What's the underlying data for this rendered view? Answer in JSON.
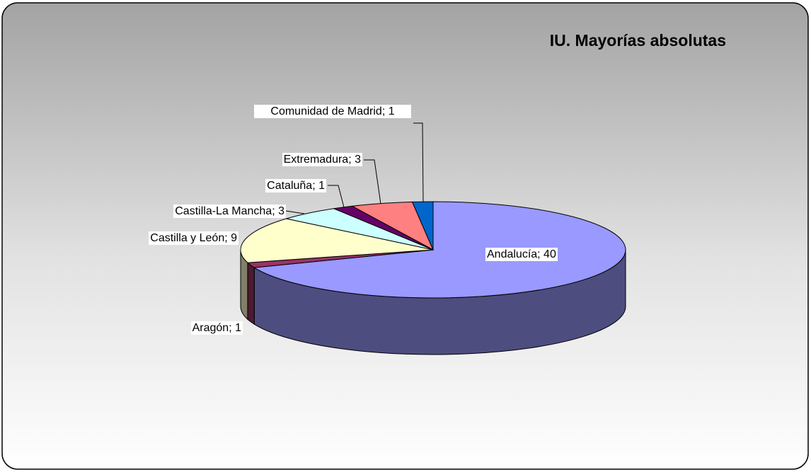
{
  "chart_data": {
    "type": "pie3d",
    "title": "IU. Mayorías absolutas",
    "categories": [
      "Andalucía",
      "Aragón",
      "Castilla y León",
      "Castilla-La Mancha",
      "Cataluña",
      "Extremadura",
      "Comunidad de Madrid"
    ],
    "values": [
      40,
      1,
      9,
      3,
      1,
      3,
      1
    ],
    "value_labels": [
      "Andalucía; 40",
      "Aragón; 1",
      "Castilla y León; 9",
      "Castilla-La Mancha; 3",
      "Cataluña; 1",
      "Extremadura; 3",
      "Comunidad de Madrid; 1"
    ],
    "colors": [
      "#9999ff",
      "#993366",
      "#ffffcc",
      "#ccffff",
      "#660066",
      "#ff8080",
      "#0066cc"
    ]
  }
}
